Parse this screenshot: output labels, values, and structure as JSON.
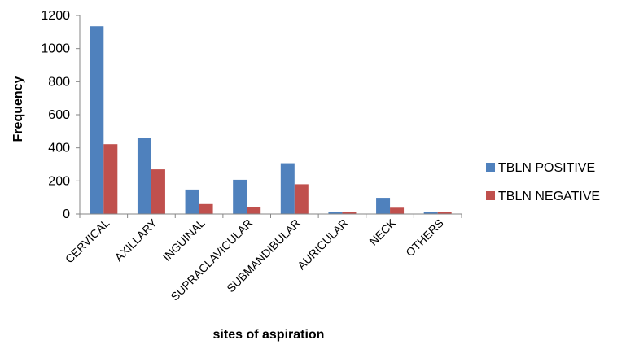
{
  "chart_data": {
    "type": "bar",
    "title": "",
    "xlabel": "sites of aspiration",
    "ylabel": "Frequency",
    "ylim": [
      0,
      1200
    ],
    "yticks": [
      0,
      200,
      400,
      600,
      800,
      1000,
      1200
    ],
    "grid": false,
    "legend_position": "right",
    "categories": [
      "CERVICAL",
      "AXILLARY",
      "INGUINAL",
      "SUPRACLAVICULAR",
      "SUBMANDIBULAR",
      "AURICULAR",
      "NECK",
      "OTHERS"
    ],
    "series": [
      {
        "name": "TBLN POSITIVE",
        "color": "#4F81BD",
        "values": [
          1135,
          462,
          148,
          207,
          307,
          13,
          98,
          10
        ]
      },
      {
        "name": "TBLN NEGATIVE",
        "color": "#C0504D",
        "values": [
          422,
          270,
          60,
          42,
          180,
          10,
          38,
          14
        ]
      }
    ]
  }
}
